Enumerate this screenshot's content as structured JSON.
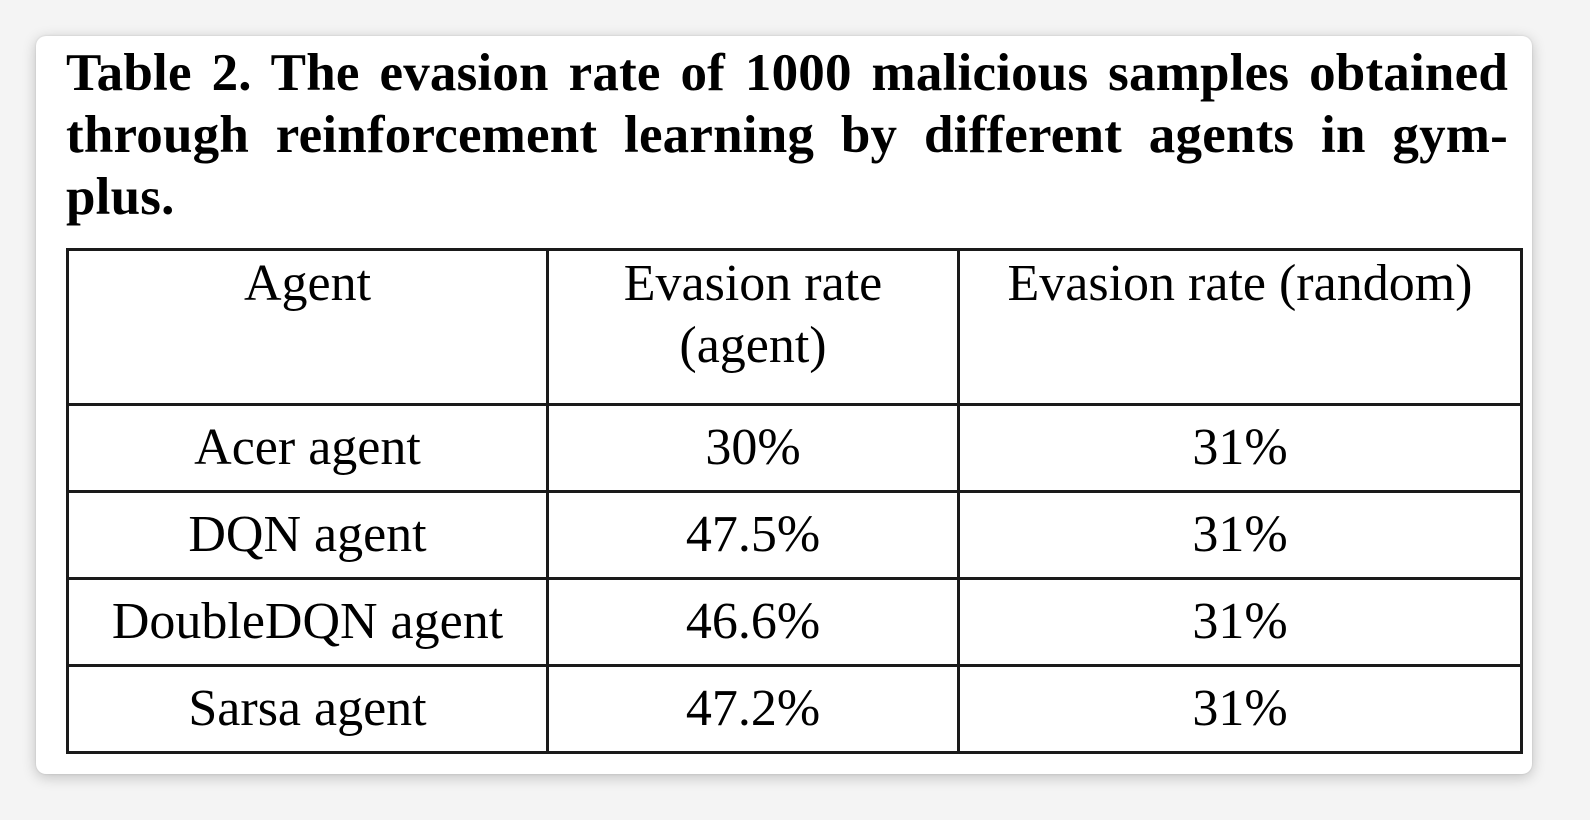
{
  "caption": "Table 2. The evasion rate of 1000 malicious samples obtained through reinforcement learning by different agents in gym-plus.",
  "table": {
    "headers": {
      "agent": "Agent",
      "evasion_agent_line1": "Evasion rate",
      "evasion_agent_line2": "(agent)",
      "evasion_random": "Evasion rate (random)"
    },
    "rows": [
      {
        "agent": "Acer agent",
        "evasion_agent": "30%",
        "evasion_random": "31%"
      },
      {
        "agent": "DQN agent",
        "evasion_agent": "47.5%",
        "evasion_random": "31%"
      },
      {
        "agent": "DoubleDQN agent",
        "evasion_agent": "46.6%",
        "evasion_random": "31%"
      },
      {
        "agent": "Sarsa agent",
        "evasion_agent": "47.2%",
        "evasion_random": "31%"
      }
    ]
  }
}
